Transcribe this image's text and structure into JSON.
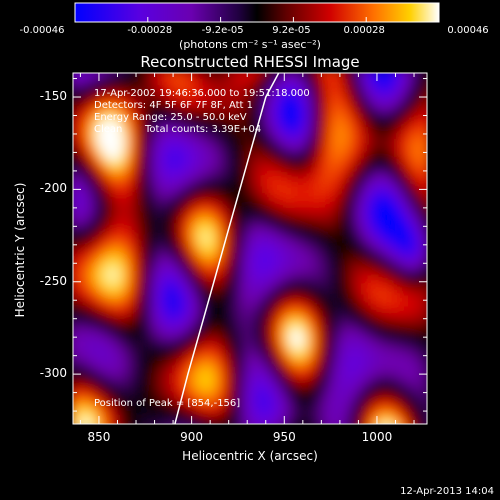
{
  "colorbar": {
    "ticks": [
      "-0.00046",
      "-0.00028",
      "-9.2e-05",
      "9.2e-05",
      "0.00028",
      "0.00046"
    ],
    "unit_label": "(photons cm⁻² s⁻¹ asec⁻²)"
  },
  "chart_data": {
    "type": "heatmap",
    "title": "Reconstructed RHESSI Image",
    "xlabel": "Heliocentric X (arcsec)",
    "ylabel": "Heliocentric Y (arcsec)",
    "xlim": [
      836,
      1027
    ],
    "ylim": [
      -327,
      -137
    ],
    "x_ticks": [
      850,
      900,
      950,
      1000
    ],
    "x_tick_labels": [
      "850",
      "900",
      "950",
      "1000"
    ],
    "y_ticks": [
      -150,
      -200,
      -250,
      -300
    ],
    "y_tick_labels": [
      "-150",
      "-200",
      "-250",
      "-300"
    ],
    "color_range": [
      -0.00046,
      0.00046
    ],
    "colormap": [
      "#0000ff",
      "#6a00d8",
      "#000000",
      "#c80000",
      "#ff6a00",
      "#ffe000",
      "#ffffff"
    ],
    "limb_curve": {
      "x": [
        891,
        898,
        905,
        912,
        919,
        926,
        933,
        940,
        947
      ],
      "y": [
        -327,
        -300,
        -275,
        -250,
        -225,
        -200,
        -175,
        -150,
        -137
      ]
    },
    "peak": {
      "x": 854,
      "y": -156
    },
    "annotations": {
      "time": "17-Apr-2002 19:46:36.000 to 19:51:18.000",
      "detectors": "Detectors: 4F 5F 6F 7F 8F, Att 1",
      "energy": "Energy Range: 25.0 - 50.0 keV",
      "method": "Clean",
      "counts": "Total counts: 3.39E+04",
      "peak_text": "Position of Peak = [854,-156]"
    }
  },
  "footer": {
    "timestamp": "12-Apr-2013 14:04"
  }
}
